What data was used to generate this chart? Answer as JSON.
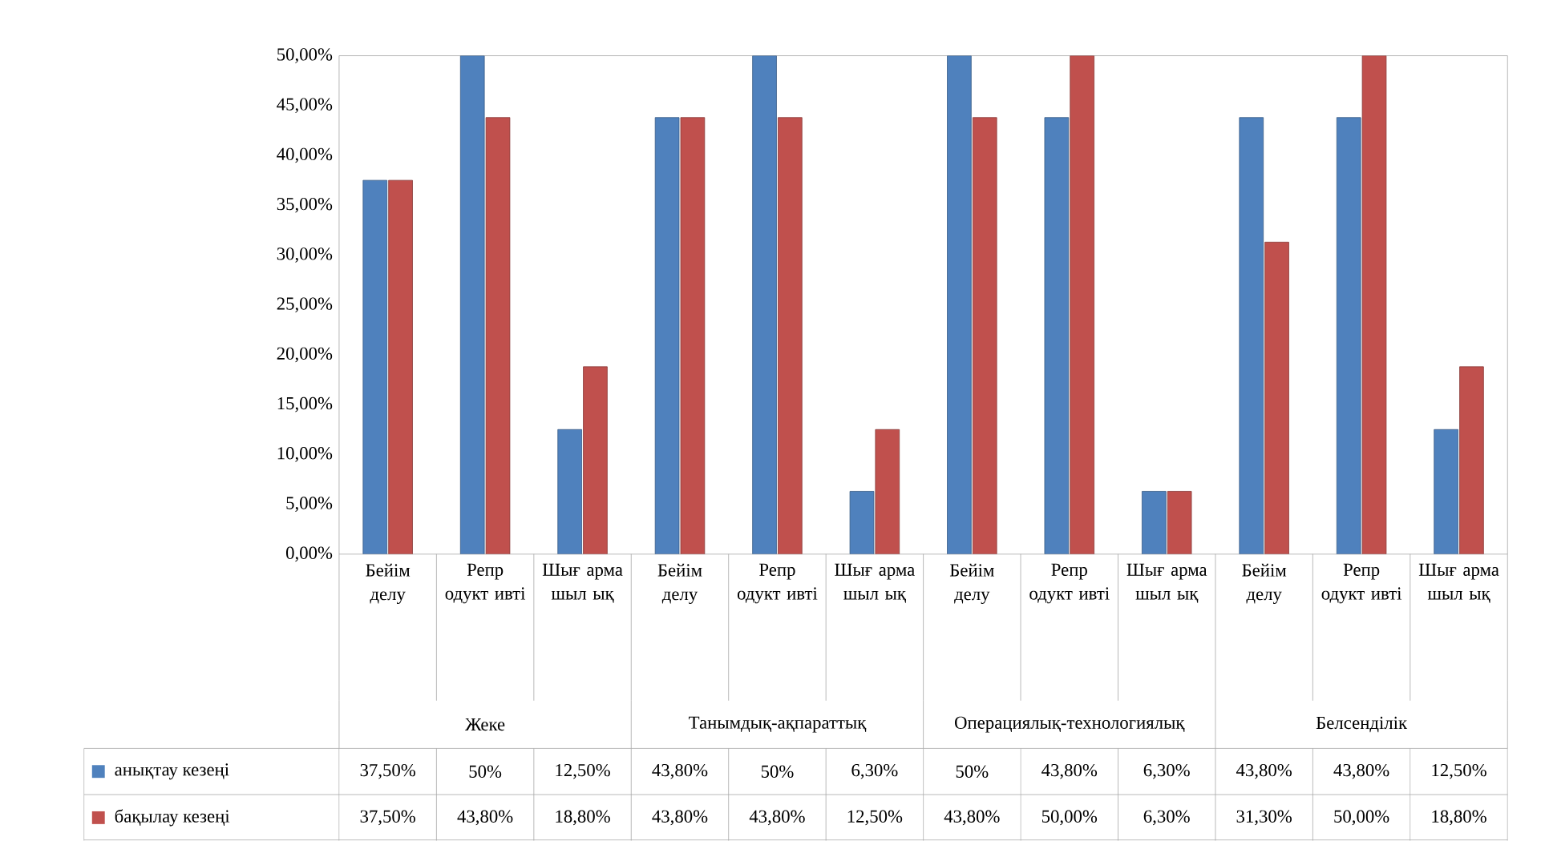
{
  "chart_data": {
    "type": "bar",
    "categories": [
      "Бейім делу",
      "Репр одукт ивті",
      "Шығ арма шыл ық",
      "Бейім делу",
      "Репр одукт ивті",
      "Шығ арма шыл ық",
      "Бейім делу",
      "Репр одукт ивті",
      "Шығ арма шыл ық",
      "Бейім делу",
      "Репр одукт ивті",
      "Шығ арма шыл ық"
    ],
    "series": [
      {
        "name": "анықтау кезеңі",
        "color": "#4f81bd",
        "values": [
          37.5,
          50,
          12.5,
          43.8,
          50,
          6.3,
          50,
          43.8,
          6.3,
          43.8,
          43.8,
          12.5
        ],
        "value_labels": [
          "37,50%",
          "50%",
          "12,50%",
          "43,80%",
          "50%",
          "6,30%",
          "50%",
          "43,80%",
          "6,30%",
          "43,80%",
          "43,80%",
          "12,50%"
        ]
      },
      {
        "name": "бақылау кезеңі",
        "color": "#c0504d",
        "values": [
          37.5,
          43.8,
          18.8,
          43.8,
          43.8,
          12.5,
          43.8,
          50,
          6.3,
          31.3,
          50,
          18.8
        ],
        "value_labels": [
          "37,50%",
          "43,80%",
          "18,80%",
          "43,80%",
          "43,80%",
          "12,50%",
          "43,80%",
          "50,00%",
          "6,30%",
          "31,30%",
          "50,00%",
          "18,80%"
        ]
      }
    ],
    "annotations": [
      "Жеке",
      "Танымдық-ақпараттық",
      "Операциялық-технологиялық",
      "Белсенділік"
    ],
    "ylim": [
      0,
      50
    ],
    "yticks": [
      {
        "value": 0,
        "label": "0,00%"
      },
      {
        "value": 5,
        "label": "5,00%"
      },
      {
        "value": 10,
        "label": "10,00%"
      },
      {
        "value": 15,
        "label": "15,00%"
      },
      {
        "value": 20,
        "label": "20,00%"
      },
      {
        "value": 25,
        "label": "25,00%"
      },
      {
        "value": 30,
        "label": "30,00%"
      },
      {
        "value": 35,
        "label": "35,00%"
      },
      {
        "value": 40,
        "label": "40,00%"
      },
      {
        "value": 45,
        "label": "45,00%"
      },
      {
        "value": 50,
        "label": "50,00%"
      }
    ],
    "grid": false,
    "legend": "bottom"
  }
}
